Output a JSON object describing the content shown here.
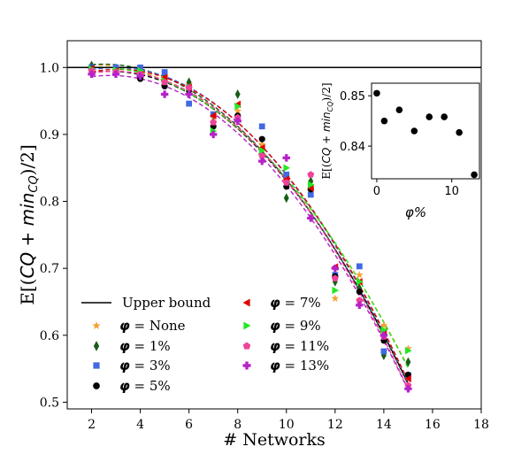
{
  "chart_data": [
    {
      "type": "scatter",
      "title": "",
      "xlabel": "# Networks",
      "ylabel": "E[(CQ + min_CQ)/2]",
      "ylabel_parts": {
        "open": "E[(",
        "cq": "CQ",
        "plus": " + ",
        "min": "min",
        "sub": "CQ",
        "close": ")/2]"
      },
      "xlim": [
        1,
        18
      ],
      "ylim": [
        0.49,
        1.04
      ],
      "xticks": [
        2,
        4,
        6,
        8,
        10,
        12,
        14,
        16,
        18
      ],
      "yticks": [
        0.5,
        0.6,
        0.7,
        0.8,
        0.9,
        1.0
      ],
      "xtick_labels": [
        "2",
        "4",
        "6",
        "8",
        "10",
        "12",
        "14",
        "16",
        "18"
      ],
      "ytick_labels": [
        "0.5",
        "0.6",
        "0.7",
        "0.8",
        "0.9",
        "1.0"
      ],
      "grid": false,
      "legend_position": "bottom-left",
      "upper_bound": {
        "name": "Upper bound",
        "y": 1.0,
        "color": "#000000"
      },
      "series": [
        {
          "name": "φ = None",
          "label_phi": "φ",
          "label_rest": " = None",
          "marker": "star",
          "color": "#f5a030",
          "x": [
            2,
            3,
            4,
            5,
            6,
            7,
            8,
            9,
            10,
            11,
            12,
            13,
            14,
            15
          ],
          "y": [
            1.0,
            0.995,
            0.99,
            0.985,
            0.975,
            0.925,
            0.935,
            0.885,
            0.83,
            0.815,
            0.655,
            0.69,
            0.615,
            0.58
          ]
        },
        {
          "name": "φ = 1%",
          "label_phi": "φ",
          "label_rest": " = 1%",
          "marker": "diamond",
          "color": "#1a5c1a",
          "x": [
            2,
            3,
            4,
            5,
            6,
            7,
            8,
            9,
            10,
            11,
            12,
            13,
            14,
            15
          ],
          "y": [
            1.003,
            0.998,
            0.995,
            0.99,
            0.978,
            0.918,
            0.96,
            0.87,
            0.805,
            0.83,
            0.68,
            0.67,
            0.57,
            0.56
          ]
        },
        {
          "name": "φ = 3%",
          "label_phi": "φ",
          "label_rest": " = 3%",
          "marker": "square",
          "color": "#4169e1",
          "x": [
            2,
            3,
            4,
            5,
            6,
            7,
            8,
            9,
            10,
            11,
            12,
            13,
            14,
            15
          ],
          "y": [
            1.0,
            1.0,
            1.0,
            0.993,
            0.946,
            0.93,
            0.925,
            0.912,
            0.84,
            0.81,
            0.69,
            0.703,
            0.576,
            0.54
          ]
        },
        {
          "name": "φ = 5%",
          "label_phi": "φ",
          "label_rest": " = 5%",
          "marker": "circle",
          "color": "#000000",
          "x": [
            2,
            3,
            4,
            5,
            6,
            7,
            8,
            9,
            10,
            11,
            12,
            13,
            14,
            15
          ],
          "y": [
            0.998,
            0.995,
            0.983,
            0.972,
            0.966,
            0.912,
            0.928,
            0.893,
            0.822,
            0.818,
            0.688,
            0.665,
            0.592,
            0.541
          ]
        },
        {
          "name": "φ = 7%",
          "label_phi": "φ",
          "label_rest": " = 7%",
          "marker": "triangle-left",
          "color": "#e00000",
          "x": [
            2,
            3,
            4,
            5,
            6,
            7,
            8,
            9,
            10,
            11,
            12,
            13,
            14,
            15
          ],
          "y": [
            0.998,
            0.995,
            0.99,
            0.985,
            0.97,
            0.928,
            0.945,
            0.88,
            0.833,
            0.82,
            0.702,
            0.68,
            0.605,
            0.535
          ]
        },
        {
          "name": "φ = 9%",
          "label_phi": "φ",
          "label_rest": " = 9%",
          "marker": "triangle-right",
          "color": "#22e822",
          "x": [
            2,
            3,
            4,
            5,
            6,
            7,
            8,
            9,
            10,
            11,
            12,
            13,
            14,
            15
          ],
          "y": [
            0.998,
            0.996,
            0.995,
            0.98,
            0.97,
            0.905,
            0.942,
            0.876,
            0.85,
            0.825,
            0.667,
            0.68,
            0.608,
            0.577
          ]
        },
        {
          "name": "φ = 11%",
          "label_phi": "φ",
          "label_rest": " = 11%",
          "marker": "pentagon",
          "color": "#f0429a",
          "x": [
            2,
            3,
            4,
            5,
            6,
            7,
            8,
            9,
            10,
            11,
            12,
            13,
            14,
            15
          ],
          "y": [
            0.995,
            0.993,
            0.99,
            0.978,
            0.97,
            0.918,
            0.925,
            0.868,
            0.828,
            0.84,
            0.685,
            0.652,
            0.598,
            0.525
          ]
        },
        {
          "name": "φ = 13%",
          "label_phi": "φ",
          "label_rest": " = 13%",
          "marker": "plus",
          "color": "#b522c8",
          "x": [
            2,
            3,
            4,
            5,
            6,
            7,
            8,
            9,
            10,
            11,
            12,
            13,
            14,
            15
          ],
          "y": [
            0.99,
            0.99,
            0.987,
            0.96,
            0.96,
            0.9,
            0.92,
            0.86,
            0.865,
            0.775,
            0.7,
            0.645,
            0.6,
            0.52
          ]
        }
      ]
    },
    {
      "type": "scatter",
      "title": "",
      "xlabel": "φ%",
      "ylabel": "E[(CQ + min_CQ)/2]",
      "xlim": [
        -0.7,
        13.7
      ],
      "ylim": [
        0.8335,
        0.8525
      ],
      "xticks": [
        0,
        10
      ],
      "yticks": [
        0.84,
        0.85
      ],
      "xtick_labels": [
        "0",
        "10"
      ],
      "ytick_labels": [
        "0.84",
        "0.85"
      ],
      "grid": false,
      "points": {
        "x": [
          0,
          1,
          3,
          5,
          7,
          9,
          11,
          13
        ],
        "y": [
          0.8505,
          0.845,
          0.8472,
          0.843,
          0.8458,
          0.8458,
          0.8427,
          0.8343
        ],
        "color": "#000000",
        "marker": "circle"
      }
    }
  ]
}
